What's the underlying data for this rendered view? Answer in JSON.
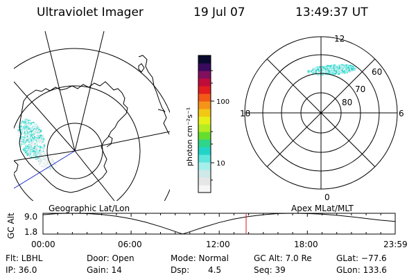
{
  "header": {
    "title": "Ultraviolet Imager",
    "date": "19 Jul 07",
    "time": "13:49:37 UT"
  },
  "colorbar": {
    "unit_label": "photon cm⁻²s⁻¹",
    "ticks": [
      "100",
      "10"
    ],
    "colors": [
      "#f6f6f6",
      "#e6e6e6",
      "#cfe8e8",
      "#a6f0ec",
      "#5fe6dc",
      "#22d4c8",
      "#2fd58a",
      "#66de2e",
      "#b6ec22",
      "#e8f01a",
      "#f2c814",
      "#f6941a",
      "#f25a18",
      "#e21e1e",
      "#c00c3a",
      "#80105e",
      "#3a0a5e",
      "#0a0a2e"
    ]
  },
  "panels": {
    "geographic_label": "Geographic Lat/Lon",
    "apex_label": "Apex  MLat/MLT",
    "mlt_labels": {
      "top": "12",
      "left": "18",
      "right": "6",
      "bottom": "0"
    },
    "mlat_labels": [
      "60",
      "70",
      "80"
    ]
  },
  "timeline": {
    "ylabel": "GC Alt",
    "ytick_top": "9.0",
    "ytick_bottom": "1.8",
    "xticks": [
      "00:00",
      "06:00",
      "12:00",
      "18:00",
      "23:59"
    ],
    "current_time_marker_hours": 13.83
  },
  "chart_data": {
    "type": "line",
    "title": "Ultraviolet Imager",
    "xlabel": "",
    "ylabel": "GC Alt",
    "x": [
      0,
      1,
      2,
      3,
      4,
      5,
      6,
      7,
      8,
      9,
      9.5,
      10,
      11,
      12,
      13,
      14,
      15,
      16,
      17,
      18,
      19,
      20,
      21,
      22,
      23,
      23.98
    ],
    "y": [
      8.5,
      8.9,
      9.0,
      8.9,
      8.6,
      8.0,
      7.1,
      5.9,
      4.4,
      2.7,
      1.8,
      2.6,
      4.3,
      5.8,
      7.0,
      7.9,
      8.5,
      8.9,
      9.0,
      8.9,
      8.7,
      8.3,
      7.8,
      7.2,
      6.6,
      6.2
    ],
    "xlim": [
      0,
      23.98
    ],
    "ylim": [
      1.8,
      9.0
    ]
  },
  "status": {
    "filter": "Flt: LBHL",
    "ip": "IP: 36.0",
    "door": "Door: Open",
    "gain": "Gain: 14",
    "mode": "Mode: Normal",
    "dsp": "Dsp:",
    "dsp_value": "4.5",
    "gc_alt": "GC Alt: 7.0 Re",
    "seq": "Seq: 39",
    "glat": "GLat: −77.6",
    "glon": "GLon: 133.6"
  }
}
